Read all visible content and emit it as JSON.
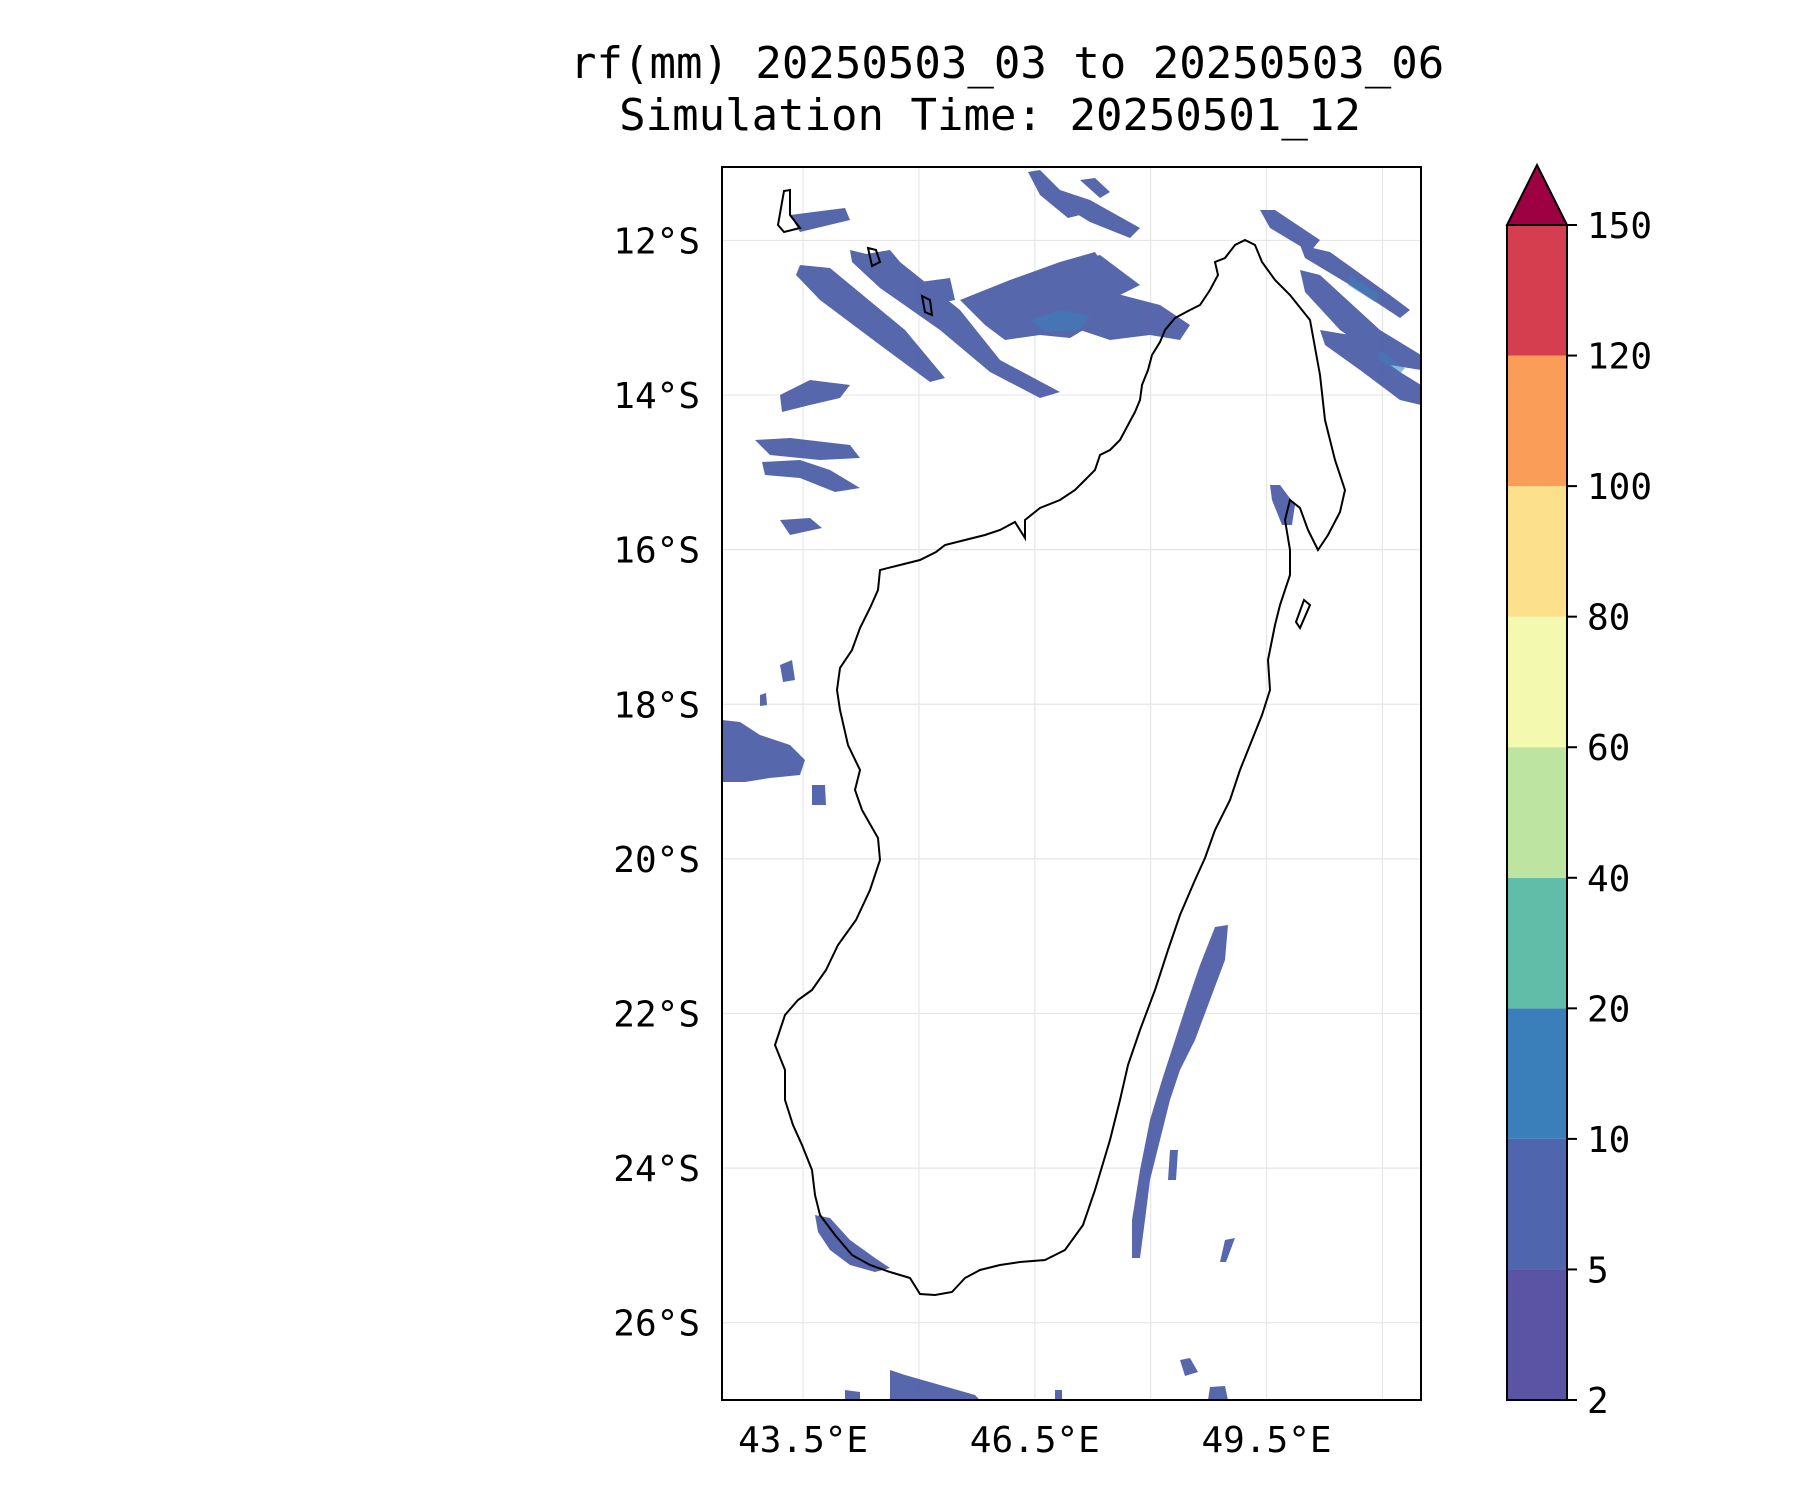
{
  "title": {
    "line1": "rf(mm) 20250503_03 to 20250503_06",
    "line2": "Simulation Time: 20250501_12"
  },
  "map": {
    "lat_ticks": [
      "12°S",
      "14°S",
      "16°S",
      "18°S",
      "20°S",
      "22°S",
      "24°S",
      "26°S"
    ],
    "lon_ticks": [
      "43.5°E",
      "46.5°E",
      "49.5°E"
    ],
    "lat_range": [
      -27.0,
      -11.05
    ],
    "lon_range": [
      42.45,
      51.5
    ],
    "gridlines": true,
    "coastline_color": "#000000"
  },
  "colorbar": {
    "labels": [
      "2",
      "5",
      "10",
      "20",
      "40",
      "60",
      "80",
      "100",
      "120",
      "150"
    ],
    "colors": [
      "#5b53a4",
      "#4f65ae",
      "#3a7fba",
      "#62bda8",
      "#bde4a0",
      "#f3f9ae",
      "#fde08b",
      "#f99d58",
      "#d53e4f"
    ],
    "extend_color": "#9e0142",
    "extend": "max"
  },
  "rain_color": "#4f5fa8"
}
